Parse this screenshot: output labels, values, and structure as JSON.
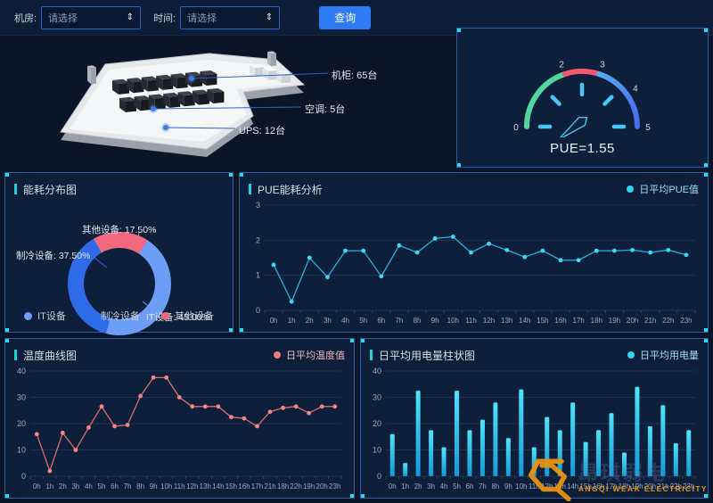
{
  "topbar": {
    "room_label": "机房:",
    "room_value": "请选择",
    "time_label": "时间:",
    "time_value": "请选择",
    "query_button": "查询"
  },
  "room_overview": {
    "cabinets_label": "机柜: 65台",
    "ac_label": "空调: 5台",
    "ups_label": "UPS: 12台"
  },
  "watermark": {
    "cn": "昂琪弱电",
    "en": "ANGQI WEAK ELECTRICITY"
  },
  "chart_data": [
    {
      "id": "pue_gauge",
      "type": "gauge",
      "display": "PUE=1.55",
      "value": 1.55,
      "min": 0,
      "max": 5,
      "axis_labels": [
        0,
        2,
        3,
        4,
        5
      ],
      "segments": [
        {
          "from": 0,
          "to": 2,
          "color": "#52d6a0"
        },
        {
          "from": 2,
          "to": 3,
          "color": "#f2596c"
        },
        {
          "from": 3,
          "to": 5,
          "color": "blue-gradient"
        }
      ],
      "tick_color": "#45c8f5"
    },
    {
      "id": "energy_distribution",
      "type": "pie",
      "title": "能耗分布图",
      "series": [
        {
          "name": "IT设备",
          "value": 45.0,
          "color": "#6d9ef7"
        },
        {
          "name": "制冷设备",
          "value": 37.5,
          "color": "#2f6ae8"
        },
        {
          "name": "其他设备",
          "value": 17.5,
          "color": "#f4687f"
        }
      ],
      "callouts": [
        "其他设备: 17.50%",
        "制冷设备: 37.50%",
        "IT设备: 45.00%"
      ],
      "legend": [
        "IT设备",
        "制冷设备",
        "其他设备"
      ]
    },
    {
      "id": "pue_analysis",
      "type": "line",
      "title": "PUE能耗分析",
      "legend": "日平均PUE值",
      "color": "#23b3d8",
      "dot_color": "#3fd9f2",
      "ylim": [
        0,
        3
      ],
      "yticks": [
        0,
        1,
        2,
        3
      ],
      "categories": [
        "0h",
        "1h",
        "2h",
        "3h",
        "4h",
        "5h",
        "6h",
        "7h",
        "8h",
        "9h",
        "10h",
        "11h",
        "12h",
        "13h",
        "14h",
        "15h",
        "16h",
        "17h",
        "18h",
        "19h",
        "20h",
        "21h",
        "22h",
        "23h"
      ],
      "values": [
        1.3,
        0.25,
        1.5,
        0.95,
        1.7,
        1.7,
        0.97,
        1.85,
        1.65,
        2.05,
        2.1,
        1.65,
        1.9,
        1.72,
        1.52,
        1.7,
        1.43,
        1.43,
        1.7,
        1.7,
        1.72,
        1.65,
        1.72,
        1.58
      ]
    },
    {
      "id": "temperature_curve",
      "type": "line",
      "title": "温度曲线图",
      "legend": "日平均温度值",
      "color": "#d96d6d",
      "dot_color": "#f08686",
      "ylim": [
        0,
        40
      ],
      "yticks": [
        0,
        10,
        20,
        30,
        40
      ],
      "categories": [
        "0h",
        "1h",
        "2h",
        "3h",
        "4h",
        "5h",
        "6h",
        "7h",
        "8h",
        "9h",
        "10h",
        "11h",
        "12h",
        "13h",
        "14h",
        "15h",
        "16h",
        "17h",
        "21h",
        "18h",
        "22h",
        "19h",
        "20h",
        "23h"
      ],
      "values": [
        16,
        2,
        16.5,
        10,
        18.5,
        26.5,
        19,
        19.5,
        30.5,
        37.5,
        37.5,
        30,
        26.5,
        26.5,
        26.5,
        22.5,
        22,
        19,
        24.5,
        26,
        26.5,
        24,
        26.5,
        26.5
      ]
    },
    {
      "id": "daily_power_bar",
      "type": "bar",
      "title": "日平均用电量柱状图",
      "legend": "日平均用电量",
      "color": "#35d3f0",
      "ylim": [
        0,
        40
      ],
      "yticks": [
        0,
        10,
        20,
        30,
        40
      ],
      "categories": [
        "0h",
        "1h",
        "2h",
        "3h",
        "4h",
        "5h",
        "6h",
        "7h",
        "8h",
        "9h",
        "10h",
        "11h",
        "12h",
        "13h",
        "14h",
        "15h",
        "16h",
        "17h",
        "18h",
        "19h",
        "20h",
        "21h",
        "22h",
        "23h"
      ],
      "values": [
        16,
        5,
        32.5,
        17.5,
        11,
        32.5,
        17.5,
        21.5,
        28,
        14.5,
        33,
        11,
        22.5,
        17.5,
        28,
        13,
        17.5,
        24,
        9,
        34,
        19,
        27,
        12.5,
        17.5
      ]
    }
  ]
}
